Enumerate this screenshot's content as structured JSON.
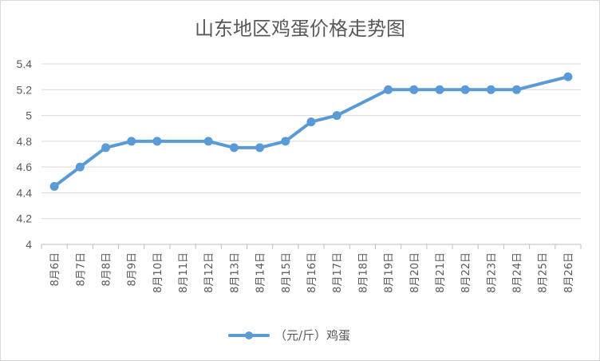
{
  "chart_data": {
    "type": "line",
    "title": "山东地区鸡蛋价格走势图",
    "xlabel": "",
    "ylabel": "",
    "categories": [
      "8月6日",
      "8月7日",
      "8月8日",
      "8月9日",
      "8月10日",
      "8月11日",
      "8月12日",
      "8月13日",
      "8月14日",
      "8月15日",
      "8月16日",
      "8月17日",
      "8月18日",
      "8月19日",
      "8月20日",
      "8月21日",
      "8月22日",
      "8月23日",
      "8月24日",
      "8月25日",
      "8月26日"
    ],
    "series": [
      {
        "name": "（元/斤）鸡蛋",
        "color": "#5b9bd5",
        "values": [
          4.45,
          4.6,
          4.75,
          4.8,
          4.8,
          null,
          4.8,
          4.75,
          4.75,
          4.8,
          4.95,
          5.0,
          null,
          5.2,
          5.2,
          5.2,
          5.2,
          5.2,
          5.2,
          null,
          5.3
        ]
      }
    ],
    "ylim": [
      4,
      5.4
    ],
    "yticks": [
      4,
      4.2,
      4.4,
      4.6,
      4.8,
      5,
      5.2,
      5.4
    ],
    "ytick_labels": [
      "4",
      "4.2",
      "4.4",
      "4.6",
      "4.8",
      "5",
      "5.2",
      "5.4"
    ],
    "grid": true,
    "legend_position": "bottom"
  }
}
